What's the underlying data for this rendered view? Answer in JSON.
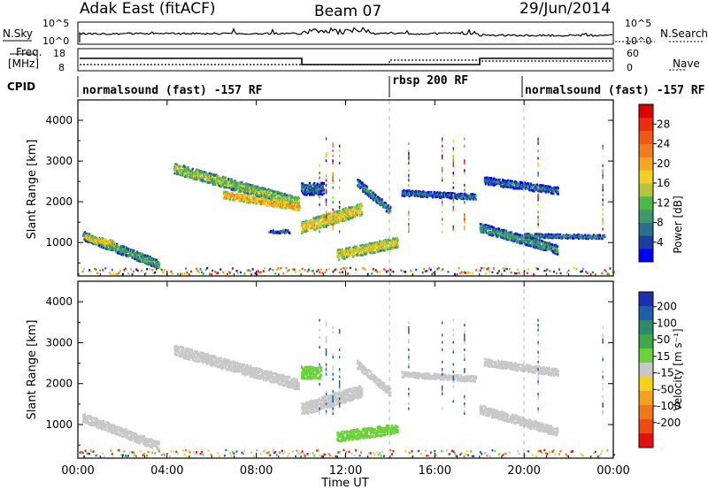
{
  "header": {
    "station": "Adak East (fitACF)",
    "beam": "Beam 07",
    "date": "29/Jun/2014"
  },
  "summary": {
    "nsky_label": "N.Sky",
    "nsearch_label": "N.Search",
    "freq_label_1": "Freq.",
    "freq_label_2": "[MHz]",
    "nave_label": "Nave",
    "cpid_label": "CPID",
    "left_ticks": [
      "10^5",
      "10^0",
      "18",
      "8"
    ],
    "right_ticks": [
      "10^5",
      "10^0",
      "60",
      "0"
    ],
    "cpid_segments": [
      {
        "text": "normalsound (fast) -157 RF"
      },
      {
        "text": "rbsp 200 RF"
      },
      {
        "text": "normalsound (fast) -157 RF"
      }
    ]
  },
  "chart_data": [
    {
      "type": "heatmap",
      "title": "",
      "xlabel": "Time UT",
      "ylabel": "Slant Range [km]",
      "xlim": [
        0,
        24
      ],
      "ylim": [
        180,
        4500
      ],
      "xticks": [
        "00:00",
        "04:00",
        "08:00",
        "12:00",
        "16:00",
        "20:00",
        "00:00"
      ],
      "yticks": [
        "1000",
        "2000",
        "3000",
        "4000"
      ],
      "colorbar": {
        "label": "Power [dB]",
        "ticks": [
          "4",
          "8",
          "12",
          "16",
          "20",
          "24",
          "28"
        ],
        "colors": [
          "#0000ff",
          "#1a3ea6",
          "#2e6e8e",
          "#3a9a6e",
          "#4cb84c",
          "#b8c43c",
          "#f0d020",
          "#f5a623",
          "#f07c1e",
          "#ee5a14",
          "#e8300e",
          "#dd0000"
        ]
      },
      "bands": [
        {
          "t0": 0.2,
          "t1": 3.6,
          "r0": 1150,
          "r1": 450,
          "w": 220,
          "v": 10
        },
        {
          "t0": 0.3,
          "t1": 1.6,
          "r0": 1100,
          "r1": 950,
          "w": 150,
          "v": 18
        },
        {
          "t0": 4.3,
          "t1": 9.9,
          "r0": 2800,
          "r1": 1950,
          "w": 260,
          "v": 13
        },
        {
          "t0": 6.5,
          "t1": 9.9,
          "r0": 2150,
          "r1": 1850,
          "w": 180,
          "v": 20
        },
        {
          "t0": 10.0,
          "t1": 12.7,
          "r0": 1350,
          "r1": 1800,
          "w": 300,
          "v": 17
        },
        {
          "t0": 10.0,
          "t1": 11.0,
          "r0": 2300,
          "r1": 2300,
          "w": 300,
          "v": 6
        },
        {
          "t0": 12.5,
          "t1": 14.0,
          "r0": 2450,
          "r1": 1750,
          "w": 200,
          "v": 8
        },
        {
          "t0": 11.6,
          "t1": 14.3,
          "r0": 680,
          "r1": 980,
          "w": 260,
          "v": 16
        },
        {
          "t0": 8.5,
          "t1": 9.5,
          "r0": 1250,
          "r1": 1250,
          "w": 80,
          "v": 6
        },
        {
          "t0": 14.5,
          "t1": 17.8,
          "r0": 2200,
          "r1": 2100,
          "w": 140,
          "v": 6
        },
        {
          "t0": 18.2,
          "t1": 21.5,
          "r0": 2500,
          "r1": 2250,
          "w": 180,
          "v": 6
        },
        {
          "t0": 18.0,
          "t1": 21.5,
          "r0": 1350,
          "r1": 800,
          "w": 220,
          "v": 9
        },
        {
          "t0": 20.0,
          "t1": 23.6,
          "r0": 1150,
          "r1": 1120,
          "w": 100,
          "v": 8
        }
      ]
    },
    {
      "type": "heatmap",
      "title": "",
      "xlabel": "Time UT",
      "ylabel": "Slant Range [km]",
      "xlim": [
        0,
        24
      ],
      "ylim": [
        180,
        4500
      ],
      "xticks": [
        "00:00",
        "04:00",
        "08:00",
        "12:00",
        "16:00",
        "20:00",
        "00:00"
      ],
      "yticks": [
        "1000",
        "2000",
        "3000",
        "4000"
      ],
      "colorbar": {
        "label": "Velocity [m s⁻¹]",
        "ticks": [
          "200",
          "100",
          "50",
          "15",
          "-15",
          "-50",
          "-100",
          "-200"
        ],
        "colors": [
          "#1c2fb0",
          "#1f5ea8",
          "#2f8a6a",
          "#3fa84a",
          "#6cd23c",
          "#c8c8c8",
          "#f2d21c",
          "#f4a21c",
          "#f07818",
          "#ee4a12",
          "#e41010"
        ]
      },
      "bands": [
        {
          "t0": 0.2,
          "t1": 3.6,
          "r0": 1150,
          "r1": 450,
          "w": 220,
          "v": 0
        },
        {
          "t0": 4.3,
          "t1": 9.9,
          "r0": 2800,
          "r1": 1950,
          "w": 260,
          "v": 0
        },
        {
          "t0": 10.0,
          "t1": 10.9,
          "r0": 2250,
          "r1": 2250,
          "w": 300,
          "v": 30
        },
        {
          "t0": 10.0,
          "t1": 12.7,
          "r0": 1350,
          "r1": 1800,
          "w": 300,
          "v": 0
        },
        {
          "t0": 11.6,
          "t1": 14.3,
          "r0": 680,
          "r1": 880,
          "w": 240,
          "v": 30
        },
        {
          "t0": 12.5,
          "t1": 14.0,
          "r0": 2450,
          "r1": 1750,
          "w": 200,
          "v": 0
        },
        {
          "t0": 14.5,
          "t1": 17.8,
          "r0": 2200,
          "r1": 2100,
          "w": 140,
          "v": 0
        },
        {
          "t0": 18.2,
          "t1": 21.5,
          "r0": 2500,
          "r1": 2250,
          "w": 180,
          "v": 0
        },
        {
          "t0": 18.0,
          "t1": 21.5,
          "r0": 1350,
          "r1": 800,
          "w": 220,
          "v": 0
        }
      ]
    }
  ]
}
